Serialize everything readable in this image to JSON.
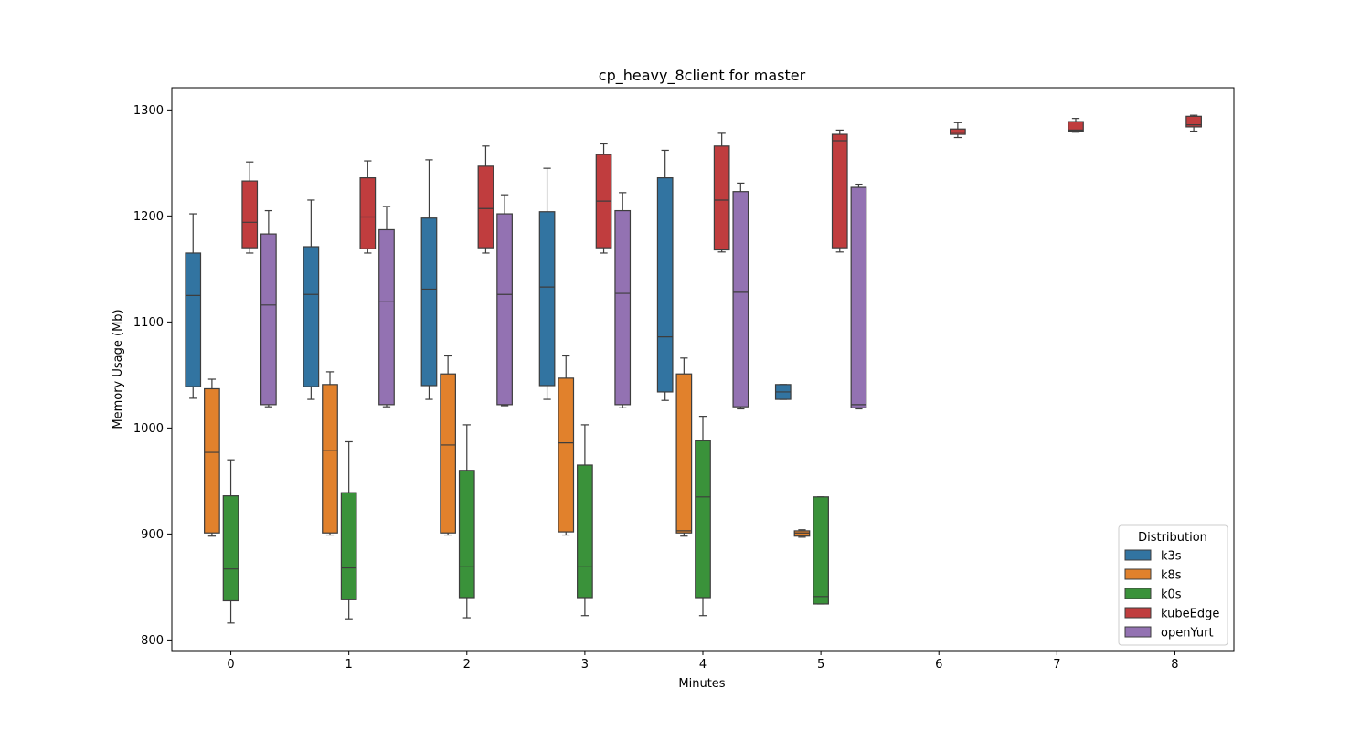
{
  "chart_data": {
    "type": "box",
    "title": "cp_heavy_8client for master",
    "xlabel": "Minutes",
    "ylabel": "Memory Usage (Mb)",
    "categories": [
      "0",
      "1",
      "2",
      "3",
      "4",
      "5",
      "6",
      "7",
      "8"
    ],
    "ylim": [
      790,
      1321
    ],
    "yticks": [
      800,
      900,
      1000,
      1100,
      1200,
      1300
    ],
    "grid": false,
    "legend": {
      "title": "Distribution",
      "position": "lower-right"
    },
    "series": [
      {
        "name": "k3s",
        "color": "#3274a1",
        "boxes": [
          {
            "category": "0",
            "whislo": 1028,
            "q1": 1039,
            "med": 1125,
            "q3": 1165,
            "whishi": 1202
          },
          {
            "category": "1",
            "whislo": 1027,
            "q1": 1039,
            "med": 1126,
            "q3": 1171,
            "whishi": 1215
          },
          {
            "category": "2",
            "whislo": 1027,
            "q1": 1040,
            "med": 1131,
            "q3": 1198,
            "whishi": 1253
          },
          {
            "category": "3",
            "whislo": 1027,
            "q1": 1040,
            "med": 1133,
            "q3": 1204,
            "whishi": 1245
          },
          {
            "category": "4",
            "whislo": 1026,
            "q1": 1034,
            "med": 1086,
            "q3": 1236,
            "whishi": 1262
          },
          {
            "category": "5",
            "whislo": 1027,
            "q1": 1027,
            "med": 1034,
            "q3": 1041,
            "whishi": 1041
          }
        ]
      },
      {
        "name": "k8s",
        "color": "#e1812c",
        "boxes": [
          {
            "category": "0",
            "whislo": 898,
            "q1": 901,
            "med": 977,
            "q3": 1037,
            "whishi": 1046
          },
          {
            "category": "1",
            "whislo": 899,
            "q1": 901,
            "med": 979,
            "q3": 1041,
            "whishi": 1053
          },
          {
            "category": "2",
            "whislo": 899,
            "q1": 901,
            "med": 984,
            "q3": 1051,
            "whishi": 1068
          },
          {
            "category": "3",
            "whislo": 899,
            "q1": 902,
            "med": 986,
            "q3": 1047,
            "whishi": 1068
          },
          {
            "category": "4",
            "whislo": 898,
            "q1": 901,
            "med": 903,
            "q3": 1051,
            "whishi": 1066
          },
          {
            "category": "5",
            "whislo": 897,
            "q1": 898,
            "med": 901,
            "q3": 903,
            "whishi": 904
          }
        ]
      },
      {
        "name": "k0s",
        "color": "#3a923a",
        "boxes": [
          {
            "category": "0",
            "whislo": 816,
            "q1": 837,
            "med": 867,
            "q3": 936,
            "whishi": 970
          },
          {
            "category": "1",
            "whislo": 820,
            "q1": 838,
            "med": 868,
            "q3": 939,
            "whishi": 987
          },
          {
            "category": "2",
            "whislo": 821,
            "q1": 840,
            "med": 869,
            "q3": 960,
            "whishi": 1003
          },
          {
            "category": "3",
            "whislo": 823,
            "q1": 840,
            "med": 869,
            "q3": 965,
            "whishi": 1003
          },
          {
            "category": "4",
            "whislo": 823,
            "q1": 840,
            "med": 935,
            "q3": 988,
            "whishi": 1011
          },
          {
            "category": "5",
            "whislo": 834,
            "q1": 834,
            "med": 841,
            "q3": 935,
            "whishi": 935
          }
        ]
      },
      {
        "name": "kubeEdge",
        "color": "#c03d3e",
        "boxes": [
          {
            "category": "0",
            "whislo": 1165,
            "q1": 1170,
            "med": 1194,
            "q3": 1233,
            "whishi": 1251
          },
          {
            "category": "1",
            "whislo": 1165,
            "q1": 1169,
            "med": 1199,
            "q3": 1236,
            "whishi": 1252
          },
          {
            "category": "2",
            "whislo": 1165,
            "q1": 1170,
            "med": 1207,
            "q3": 1247,
            "whishi": 1266
          },
          {
            "category": "3",
            "whislo": 1165,
            "q1": 1170,
            "med": 1214,
            "q3": 1258,
            "whishi": 1268
          },
          {
            "category": "4",
            "whislo": 1166,
            "q1": 1168,
            "med": 1215,
            "q3": 1266,
            "whishi": 1278
          },
          {
            "category": "5",
            "whislo": 1166,
            "q1": 1170,
            "med": 1271,
            "q3": 1277,
            "whishi": 1281
          },
          {
            "category": "6",
            "whislo": 1274,
            "q1": 1277,
            "med": 1279,
            "q3": 1282,
            "whishi": 1288
          },
          {
            "category": "7",
            "whislo": 1279,
            "q1": 1280,
            "med": 1281,
            "q3": 1289,
            "whishi": 1292
          },
          {
            "category": "8",
            "whislo": 1280,
            "q1": 1284,
            "med": 1286,
            "q3": 1294,
            "whishi": 1295
          }
        ]
      },
      {
        "name": "openYurt",
        "color": "#9372b2",
        "boxes": [
          {
            "category": "0",
            "whislo": 1020,
            "q1": 1022,
            "med": 1116,
            "q3": 1183,
            "whishi": 1205
          },
          {
            "category": "1",
            "whislo": 1020,
            "q1": 1022,
            "med": 1119,
            "q3": 1187,
            "whishi": 1209
          },
          {
            "category": "2",
            "whislo": 1021,
            "q1": 1022,
            "med": 1126,
            "q3": 1202,
            "whishi": 1220
          },
          {
            "category": "3",
            "whislo": 1019,
            "q1": 1022,
            "med": 1127,
            "q3": 1205,
            "whishi": 1222
          },
          {
            "category": "4",
            "whislo": 1018,
            "q1": 1020,
            "med": 1128,
            "q3": 1223,
            "whishi": 1231
          },
          {
            "category": "5",
            "whislo": 1018,
            "q1": 1019,
            "med": 1022,
            "q3": 1227,
            "whishi": 1230
          }
        ]
      }
    ]
  }
}
